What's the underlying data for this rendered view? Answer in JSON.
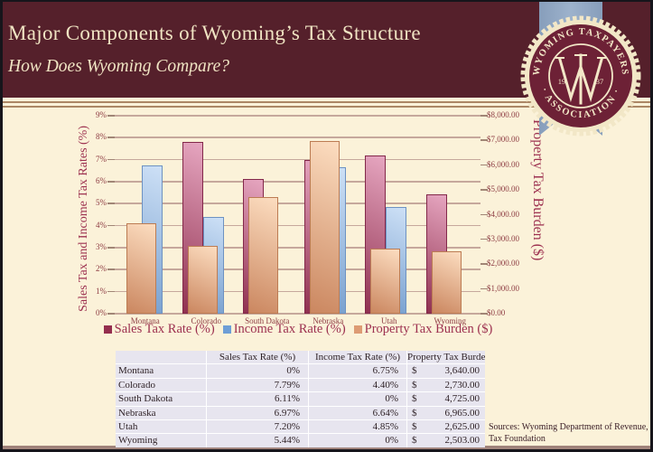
{
  "header": {
    "title": "Major Components of Wyoming’s Tax Structure",
    "subtitle": "How Does Wyoming Compare?"
  },
  "logo": {
    "top_text": "WYOMING TAXPAYERS",
    "bottom_text": "· ASSOCIATION ·",
    "year_left": "19",
    "year_right": "37",
    "monogram": "WT",
    "colors": {
      "seal_maroon": "#6d2136",
      "seal_cream": "#f2e7c7",
      "ribbon_blue": "#92a8c4"
    }
  },
  "chart_data": {
    "type": "bar",
    "categories": [
      "Montana",
      "Colorado",
      "South Dakota",
      "Nebraska",
      "Utah",
      "Wyoming"
    ],
    "series": [
      {
        "name": "Sales Tax Rate (%)",
        "axis": "left",
        "values": [
          0,
          7.79,
          6.11,
          6.97,
          7.2,
          5.44
        ],
        "gradient": [
          "#e6a6c0",
          "#903150"
        ],
        "border": "#83284a",
        "legend_color": "#942e4e"
      },
      {
        "name": "Income Tax Rate (%)",
        "axis": "left",
        "values": [
          6.75,
          4.4,
          0,
          6.64,
          4.85,
          0
        ],
        "gradient": [
          "#cde0f6",
          "#779fce"
        ],
        "border": "#6d92c2",
        "legend_color": "#6e9ed6"
      },
      {
        "name": "Property Tax Burden ($)",
        "axis": "right",
        "values": [
          3640,
          2730,
          4725,
          6965,
          2625,
          2503
        ],
        "gradient": [
          "#fcddc0",
          "#cb8760"
        ],
        "border": "#bc7c53",
        "legend_color": "#dd9b74"
      }
    ],
    "left_axis": {
      "title": "Sales Tax and Income Tax Rates (%)",
      "min": 0,
      "max": 9,
      "ticks": [
        "0%",
        "1%",
        "2%",
        "3%",
        "4%",
        "5%",
        "6%",
        "7%",
        "8%",
        "9%"
      ]
    },
    "right_axis": {
      "title": "Property Tax Burden ($)",
      "min": 0,
      "max": 8000,
      "ticks": [
        "$0.00",
        "$1,000.00",
        "$2,000.00",
        "$3,000.00",
        "$4,000.00",
        "$5,000.00",
        "$6,000.00",
        "$7,000.00",
        "$8,000.00"
      ]
    },
    "grid": true,
    "legend_position": "bottom",
    "background": "#fbf2d9"
  },
  "table": {
    "headers": [
      "",
      "Sales Tax Rate (%)",
      "Income Tax Rate (%)",
      "Property Tax Burden ($)"
    ],
    "rows": [
      {
        "label": "Montana",
        "sales": "0%",
        "income": "6.75%",
        "dollar": "$",
        "property": "3,640.00"
      },
      {
        "label": "Colorado",
        "sales": "7.79%",
        "income": "4.40%",
        "dollar": "$",
        "property": "2,730.00"
      },
      {
        "label": "South Dakota",
        "sales": "6.11%",
        "income": "0%",
        "dollar": "$",
        "property": "4,725.00"
      },
      {
        "label": "Nebraska",
        "sales": "6.97%",
        "income": "6.64%",
        "dollar": "$",
        "property": "6,965.00"
      },
      {
        "label": "Utah",
        "sales": "7.20%",
        "income": "4.85%",
        "dollar": "$",
        "property": "2,625.00"
      },
      {
        "label": "Wyoming",
        "sales": "5.44%",
        "income": "0%",
        "dollar": "$",
        "property": "2,503.00"
      }
    ]
  },
  "footer": {
    "sources_line1": "Sources: Wyoming Department of Revenue,",
    "sources_line2": "Tax Foundation"
  }
}
